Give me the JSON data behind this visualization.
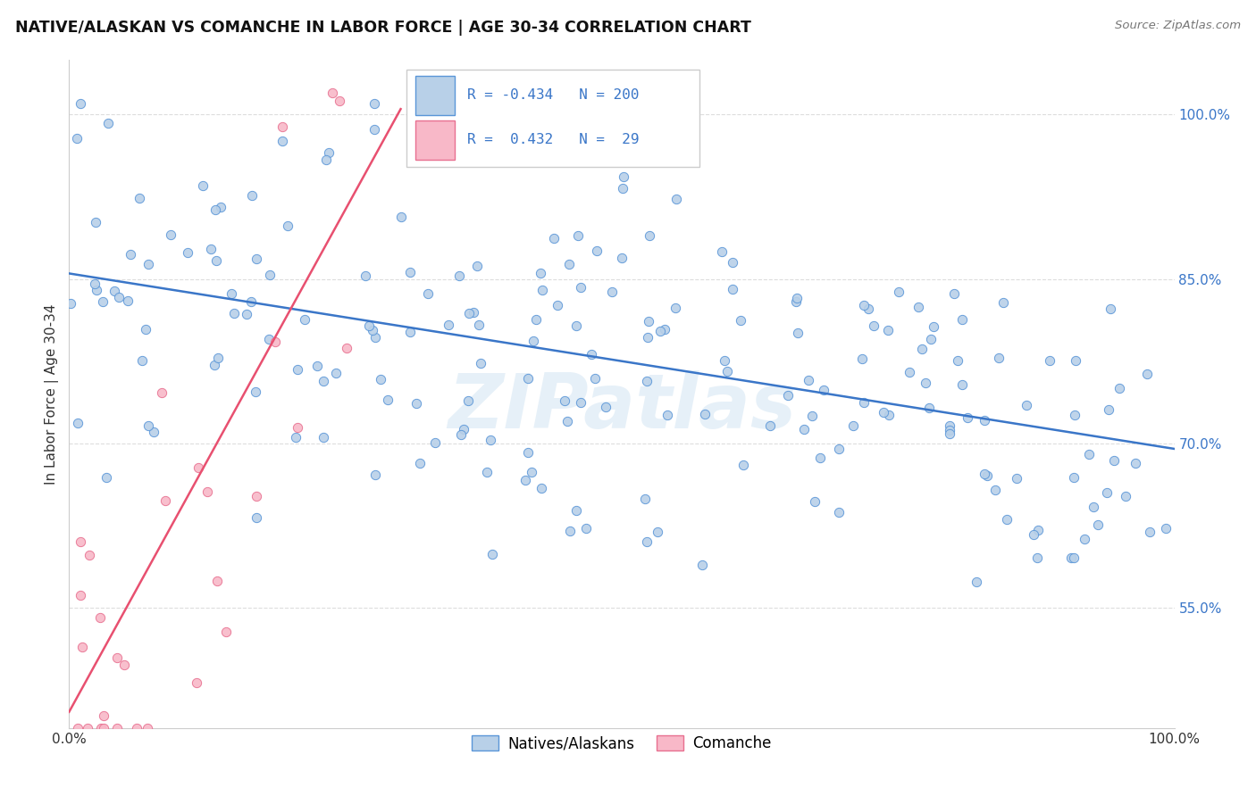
{
  "title": "NATIVE/ALASKAN VS COMANCHE IN LABOR FORCE | AGE 30-34 CORRELATION CHART",
  "source": "Source: ZipAtlas.com",
  "ylabel": "In Labor Force | Age 30-34",
  "xlim": [
    0.0,
    1.0
  ],
  "ylim": [
    0.44,
    1.05
  ],
  "yticks": [
    0.55,
    0.7,
    0.85,
    1.0
  ],
  "ytick_labels": [
    "55.0%",
    "70.0%",
    "85.0%",
    "100.0%"
  ],
  "xticks": [
    0.0,
    1.0
  ],
  "xtick_labels": [
    "0.0%",
    "100.0%"
  ],
  "blue_R": -0.434,
  "blue_N": 200,
  "pink_R": 0.432,
  "pink_N": 29,
  "blue_color": "#b8d0e8",
  "blue_edge_color": "#5a96d8",
  "pink_color": "#f8b8c8",
  "pink_edge_color": "#e87090",
  "blue_line_color": "#3a76c8",
  "pink_line_color": "#e85070",
  "dot_size": 55,
  "blue_trend_x": [
    0.0,
    1.0
  ],
  "blue_trend_y": [
    0.855,
    0.695
  ],
  "pink_trend_x": [
    0.0,
    0.3
  ],
  "pink_trend_y": [
    0.455,
    1.005
  ],
  "background_color": "#ffffff",
  "watermark": "ZIPatlas",
  "grid_color": "#dddddd",
  "legend_text_color": "#3a76c8",
  "legend_R_color": "#3a76c8"
}
